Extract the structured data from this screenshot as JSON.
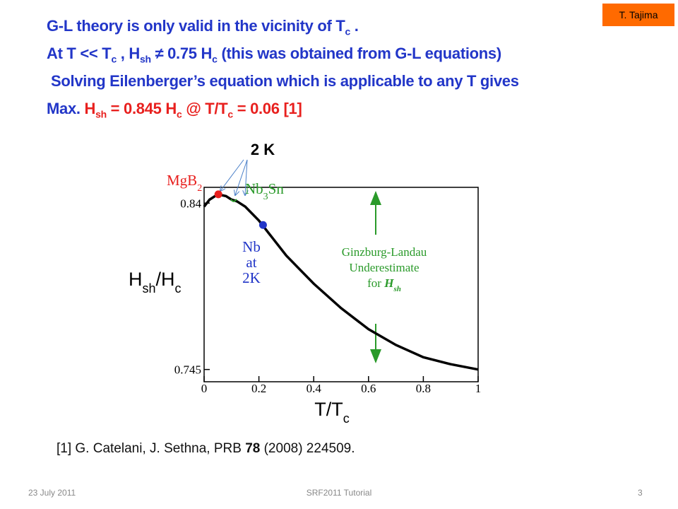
{
  "header": {
    "lines": [
      [
        {
          "text": "G-L theory is only valid in the vicinity of T",
          "color": "#2236c8"
        },
        {
          "text": "c",
          "sub": true,
          "color": "#2236c8"
        },
        {
          "text": " .",
          "color": "#2236c8"
        }
      ],
      [
        {
          "text": "At T << T",
          "color": "#2236c8"
        },
        {
          "text": "c",
          "sub": true,
          "color": "#2236c8"
        },
        {
          "text": "  , H",
          "color": "#2236c8"
        },
        {
          "text": "sh",
          "sub": true,
          "color": "#2236c8"
        },
        {
          "text": "  ≠ 0.75 H",
          "color": "#2236c8"
        },
        {
          "text": "c",
          "sub": true,
          "color": "#2236c8"
        },
        {
          "text": "  (this was obtained from G-L equations)",
          "color": "#2236c8"
        }
      ],
      [
        {
          "text": "Solving Eilenberger’s equation which is applicable to any T gives",
          "color": "#2236c8"
        }
      ],
      [
        {
          "text": "Max. ",
          "color": "#2236c8"
        },
        {
          "text": "H",
          "color": "#e8201e"
        },
        {
          "text": "sh",
          "sub": true,
          "color": "#e8201e"
        },
        {
          "text": "  = 0.845 H",
          "color": "#e8201e"
        },
        {
          "text": "c",
          "sub": true,
          "color": "#e8201e"
        },
        {
          "text": "  @ T/T",
          "color": "#e8201e"
        },
        {
          "text": "c",
          "sub": true,
          "color": "#e8201e"
        },
        {
          "text": "  = 0.06 [1]",
          "color": "#e8201e"
        }
      ]
    ]
  },
  "chart_data": {
    "type": "line",
    "x_label": [
      {
        "text": "T/T"
      },
      {
        "text": "c",
        "sub": true
      }
    ],
    "y_label": [
      {
        "text": "H"
      },
      {
        "text": "sh",
        "sub": true
      },
      {
        "text": "/H"
      },
      {
        "text": "c",
        "sub": true
      }
    ],
    "series": [
      {
        "color": "#000000",
        "x": [
          0,
          0.02,
          0.05,
          0.08,
          0.1,
          0.12,
          0.15,
          0.2,
          0.25,
          0.3,
          0.4,
          0.5,
          0.6,
          0.7,
          0.8,
          0.9,
          1
        ],
        "values": [
          0.838,
          0.842,
          0.845,
          0.844,
          0.842,
          0.841,
          0.838,
          0.83,
          0.82,
          0.81,
          0.794,
          0.78,
          0.768,
          0.759,
          0.752,
          0.748,
          0.745
        ]
      }
    ],
    "markers": [
      {
        "label": [
          [
            {
              "text": "MgB"
            },
            {
              "text": "2",
              "sub": true
            }
          ]
        ],
        "color": "#e8201e",
        "x": 0.052,
        "y": 0.845
      },
      {
        "label": [
          [
            {
              "text": "Nb"
            },
            {
              "text": "3",
              "sub": true
            },
            {
              "text": "Sn"
            }
          ]
        ],
        "color": "#2a9a2a",
        "x": 0.108,
        "y": 0.841
      },
      {
        "label": [
          [
            {
              "text": "Nb"
            }
          ],
          [
            {
              "text": "at"
            }
          ],
          [
            {
              "text": "2K"
            }
          ]
        ],
        "color": "#2236c8",
        "x": 0.215,
        "y": 0.8275
      }
    ],
    "annotations": [
      {
        "lines": [
          [
            {
              "text": "2 K"
            }
          ]
        ],
        "color": "#000000"
      },
      {
        "lines": [
          [
            {
              "text": "Ginzburg-Landau"
            }
          ],
          [
            {
              "text": "Underestimate"
            }
          ],
          [
            {
              "text": "for "
            },
            {
              "text": "H",
              "italic": true
            },
            {
              "text": "sh",
              "sub": true,
              "italic": true
            }
          ]
        ],
        "color": "#2a9a2a"
      }
    ],
    "xlim": [
      0,
      1
    ],
    "ylim": [
      0.738,
      0.849
    ],
    "xticks": [
      0,
      0.2,
      0.4,
      0.6,
      0.8,
      1
    ],
    "yticks": [
      0.745,
      0.84
    ]
  },
  "reference": [
    {
      "text": "[1] G. Catelani, J. Sethna, PRB "
    },
    {
      "text": "78",
      "bold": true
    },
    {
      "text": " (2008) 224509."
    }
  ],
  "footer": {
    "date": "23 July 2011",
    "event": "SRF2011 Tutorial",
    "page": "3"
  },
  "badge": "T. Tajima"
}
